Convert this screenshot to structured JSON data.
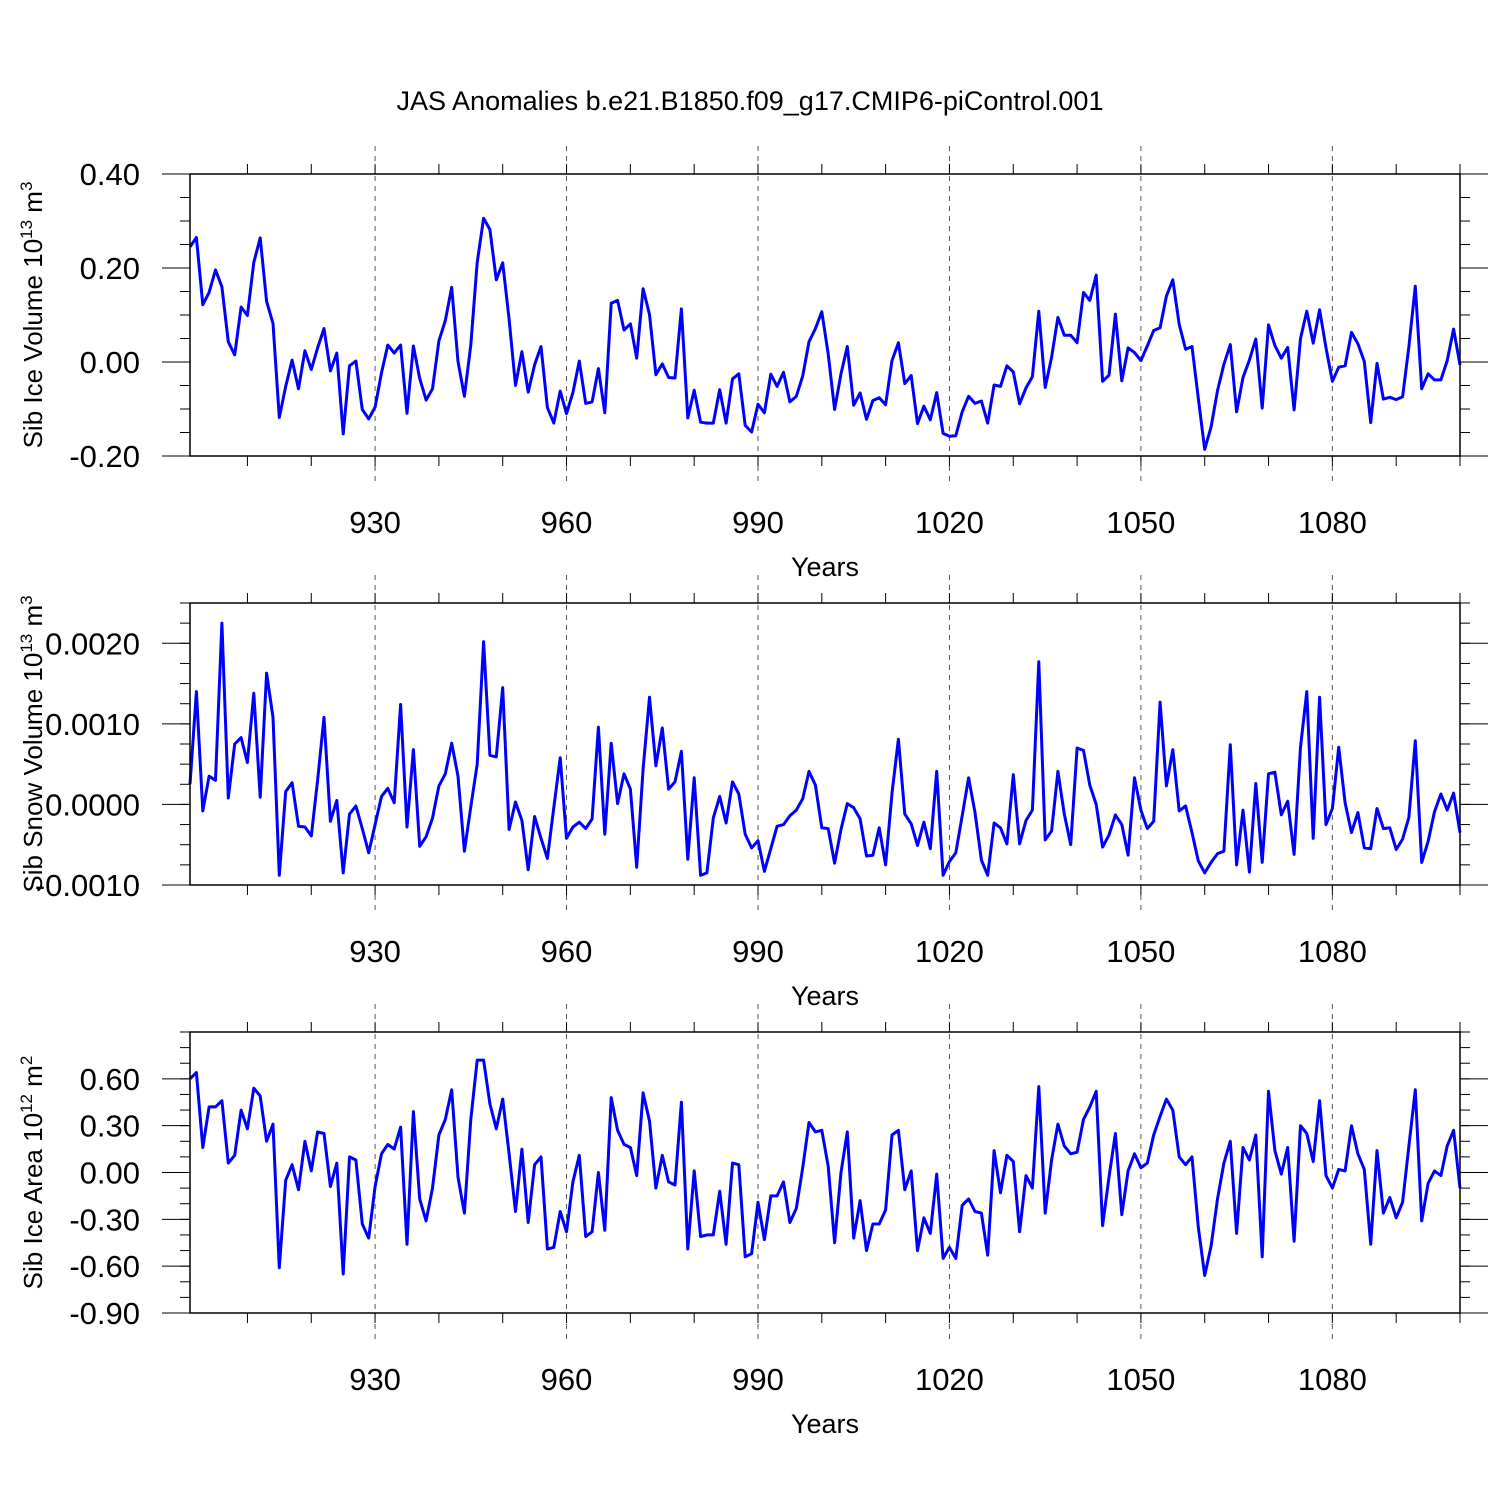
{
  "title": "JAS Anomalies b.e21.B1850.f09_g17.CMIP6-piControl.001",
  "line_color": "#0000ff",
  "chart_data": [
    {
      "type": "line",
      "title": "JAS Anomalies b.e21.B1850.f09_g17.CMIP6-piControl.001",
      "ylabel_main": "Sib Ice Volume 10",
      "ylabel_exp": "13",
      "ylabel_unit": " m",
      "ylabel_unit_exp": "3",
      "xlabel": "Years",
      "xlim": [
        901,
        1100
      ],
      "ylim": [
        -0.2,
        0.4
      ],
      "xticks": [
        930,
        960,
        990,
        1020,
        1050,
        1080
      ],
      "xtick_labels": [
        "930",
        "960",
        "990",
        "1020",
        "1050",
        "1080"
      ],
      "yticks": [
        -0.2,
        0.0,
        0.2,
        0.4
      ],
      "ytick_labels": [
        "-0.20",
        "0.00",
        "0.20",
        "0.40"
      ],
      "y_minor_step": 0.05,
      "x_start": 901,
      "values": [
        0.245,
        0.265,
        0.122,
        0.148,
        0.196,
        0.16,
        0.043,
        0.015,
        0.117,
        0.099,
        0.212,
        0.264,
        0.129,
        0.082,
        -0.118,
        -0.052,
        0.004,
        -0.057,
        0.024,
        -0.016,
        0.03,
        0.071,
        -0.019,
        0.019,
        -0.153,
        -0.008,
        0.002,
        -0.101,
        -0.121,
        -0.096,
        -0.023,
        0.036,
        0.019,
        0.036,
        -0.109,
        0.034,
        -0.035,
        -0.081,
        -0.057,
        0.045,
        0.088,
        0.159,
        0.001,
        -0.073,
        0.036,
        0.212,
        0.306,
        0.282,
        0.175,
        0.211,
        0.091,
        -0.05,
        0.022,
        -0.064,
        -0.006,
        0.033,
        -0.097,
        -0.13,
        -0.062,
        -0.11,
        -0.065,
        0.002,
        -0.088,
        -0.085,
        -0.014,
        -0.108,
        0.125,
        0.131,
        0.068,
        0.081,
        0.008,
        0.156,
        0.101,
        -0.027,
        -0.004,
        -0.033,
        -0.034,
        0.113,
        -0.119,
        -0.06,
        -0.128,
        -0.13,
        -0.13,
        -0.059,
        -0.13,
        -0.036,
        -0.025,
        -0.135,
        -0.149,
        -0.09,
        -0.108,
        -0.026,
        -0.052,
        -0.022,
        -0.085,
        -0.073,
        -0.03,
        0.043,
        0.071,
        0.107,
        0.017,
        -0.101,
        -0.025,
        0.033,
        -0.092,
        -0.066,
        -0.122,
        -0.082,
        -0.076,
        -0.091,
        0.003,
        0.041,
        -0.046,
        -0.029,
        -0.131,
        -0.094,
        -0.123,
        -0.065,
        -0.152,
        -0.158,
        -0.157,
        -0.106,
        -0.073,
        -0.088,
        -0.083,
        -0.13,
        -0.049,
        -0.052,
        -0.008,
        -0.021,
        -0.089,
        -0.055,
        -0.031,
        0.108,
        -0.054,
        0.01,
        0.095,
        0.057,
        0.057,
        0.041,
        0.148,
        0.131,
        0.185,
        -0.041,
        -0.028,
        0.102,
        -0.04,
        0.03,
        0.02,
        0.003,
        0.034,
        0.067,
        0.073,
        0.14,
        0.175,
        0.08,
        0.027,
        0.033,
        -0.077,
        -0.186,
        -0.138,
        -0.061,
        -0.005,
        0.037,
        -0.106,
        -0.033,
        0.004,
        0.049,
        -0.098,
        0.079,
        0.035,
        0.008,
        0.031,
        -0.102,
        0.05,
        0.108,
        0.04,
        0.111,
        0.03,
        -0.041,
        -0.011,
        -0.008,
        0.063,
        0.039,
        0.001,
        -0.129,
        -0.003,
        -0.079,
        -0.075,
        -0.08,
        -0.074,
        0.033,
        0.161,
        -0.057,
        -0.025,
        -0.038,
        -0.038,
        0.003,
        0.07,
        -0.006
      ]
    },
    {
      "type": "line",
      "ylabel_main": "Sib Snow Volume 10",
      "ylabel_exp": "13",
      "ylabel_unit": " m",
      "ylabel_unit_exp": "3",
      "xlabel": "Years",
      "xlim": [
        901,
        1100
      ],
      "ylim": [
        -0.001,
        0.0025
      ],
      "xticks": [
        930,
        960,
        990,
        1020,
        1050,
        1080
      ],
      "xtick_labels": [
        "930",
        "960",
        "990",
        "1020",
        "1050",
        "1080"
      ],
      "yticks": [
        -0.001,
        0.0,
        0.001,
        0.002
      ],
      "ytick_labels": [
        "-0.0010",
        "0.0000",
        "0.0010",
        "0.0020"
      ],
      "y_minor_step": 0.00025,
      "x_start": 901,
      "values": [
        0.00025,
        0.0014,
        -8e-05,
        0.00035,
        0.0003,
        0.00225,
        8e-05,
        0.00075,
        0.00083,
        0.00052,
        0.00138,
        9e-05,
        0.00163,
        0.00108,
        -0.00088,
        0.00016,
        0.00027,
        -0.00027,
        -0.00028,
        -0.00039,
        0.0003,
        0.00108,
        -0.00021,
        5e-05,
        -0.00085,
        -0.00012,
        -2e-05,
        -0.0003,
        -0.0006,
        -0.00025,
        0.0001,
        0.0002,
        2e-05,
        0.00124,
        -0.00028,
        0.00068,
        -0.00052,
        -0.0004,
        -0.00017,
        0.00023,
        0.00038,
        0.00076,
        0.00035,
        -0.00058,
        -3e-05,
        0.0005,
        0.00202,
        0.00061,
        0.00059,
        0.00145,
        -0.00031,
        3e-05,
        -0.0002,
        -0.00081,
        -0.00015,
        -0.00042,
        -0.00067,
        -4e-05,
        0.00058,
        -0.00042,
        -0.00028,
        -0.00022,
        -0.0003,
        -0.00018,
        0.00096,
        -0.00037,
        0.00076,
        1e-05,
        0.00038,
        0.00019,
        -0.00078,
        0.00044,
        0.00133,
        0.00048,
        0.00095,
        0.00019,
        0.00028,
        0.00066,
        -0.00068,
        0.00033,
        -0.00088,
        -0.00085,
        -0.00017,
        0.0001,
        -0.00023,
        0.00028,
        0.00013,
        -0.00037,
        -0.00054,
        -0.00045,
        -0.00083,
        -0.00055,
        -0.00027,
        -0.00025,
        -0.00014,
        -7e-05,
        7e-05,
        0.00041,
        0.00024,
        -0.00029,
        -0.0003,
        -0.00073,
        -0.00031,
        1e-05,
        -4e-05,
        -0.00018,
        -0.00064,
        -0.00063,
        -0.00029,
        -0.00075,
        0.00014,
        0.00081,
        -0.00012,
        -0.00024,
        -0.00051,
        -0.00022,
        -0.00055,
        0.00041,
        -0.00088,
        -0.00071,
        -0.0006,
        -0.00014,
        0.00033,
        -0.0001,
        -0.00069,
        -0.00088,
        -0.00023,
        -0.00029,
        -0.00049,
        0.00037,
        -0.00049,
        -0.0002,
        -7e-05,
        0.00177,
        -0.00044,
        -0.00033,
        0.00041,
        -0.00012,
        -0.0005,
        0.0007,
        0.00067,
        0.00024,
        0.0,
        -0.00053,
        -0.00038,
        -0.00013,
        -0.00025,
        -0.00063,
        0.00033,
        -7e-05,
        -0.0003,
        -0.00021,
        0.00127,
        0.00023,
        0.00068,
        -8e-05,
        -2e-05,
        -0.00035,
        -0.0007,
        -0.00085,
        -0.00072,
        -0.00061,
        -0.00058,
        0.00074,
        -0.00075,
        -7e-05,
        -0.00084,
        0.00026,
        -0.00072,
        0.00038,
        0.0004,
        -0.00013,
        4e-05,
        -0.00062,
        0.00071,
        0.0014,
        -0.00042,
        0.00133,
        -0.00025,
        -5e-05,
        0.00071,
        2e-05,
        -0.00035,
        -0.0001,
        -0.00054,
        -0.00055,
        -5e-05,
        -0.0003,
        -0.00029,
        -0.00056,
        -0.00043,
        -0.00016,
        0.00079,
        -0.00072,
        -0.00046,
        -9e-05,
        0.00013,
        -7e-05,
        0.00014,
        -0.00035
      ]
    },
    {
      "type": "line",
      "ylabel_main": "Sib Ice Area 10",
      "ylabel_exp": "12",
      "ylabel_unit": " m",
      "ylabel_unit_exp": "2",
      "xlabel": "Years",
      "xlim": [
        901,
        1100
      ],
      "ylim": [
        -0.9,
        0.9
      ],
      "xticks": [
        930,
        960,
        990,
        1020,
        1050,
        1080
      ],
      "xtick_labels": [
        "930",
        "960",
        "990",
        "1020",
        "1050",
        "1080"
      ],
      "yticks": [
        -0.9,
        -0.6,
        -0.3,
        0.0,
        0.3,
        0.6
      ],
      "ytick_labels": [
        "-0.90",
        "-0.60",
        "-0.30",
        "0.00",
        "0.30",
        "0.60"
      ],
      "y_minor_step": 0.1,
      "x_start": 901,
      "values": [
        0.6,
        0.64,
        0.16,
        0.42,
        0.42,
        0.46,
        0.06,
        0.11,
        0.4,
        0.28,
        0.54,
        0.49,
        0.2,
        0.31,
        -0.61,
        -0.05,
        0.05,
        -0.11,
        0.2,
        0.01,
        0.26,
        0.25,
        -0.09,
        0.06,
        -0.65,
        0.1,
        0.08,
        -0.33,
        -0.42,
        -0.09,
        0.12,
        0.18,
        0.15,
        0.29,
        -0.46,
        0.39,
        -0.17,
        -0.31,
        -0.1,
        0.24,
        0.34,
        0.53,
        -0.03,
        -0.26,
        0.34,
        0.72,
        0.72,
        0.44,
        0.28,
        0.47,
        0.12,
        -0.25,
        0.15,
        -0.32,
        0.05,
        0.1,
        -0.49,
        -0.48,
        -0.25,
        -0.38,
        -0.06,
        0.11,
        -0.41,
        -0.38,
        0.0,
        -0.37,
        0.48,
        0.27,
        0.18,
        0.16,
        -0.02,
        0.51,
        0.33,
        -0.1,
        0.11,
        -0.06,
        -0.08,
        0.45,
        -0.49,
        0.01,
        -0.41,
        -0.4,
        -0.4,
        -0.12,
        -0.46,
        0.06,
        0.05,
        -0.54,
        -0.52,
        -0.19,
        -0.43,
        -0.15,
        -0.15,
        -0.06,
        -0.32,
        -0.23,
        0.03,
        0.32,
        0.26,
        0.27,
        0.04,
        -0.45,
        0.0,
        0.26,
        -0.42,
        -0.18,
        -0.5,
        -0.33,
        -0.33,
        -0.24,
        0.24,
        0.27,
        -0.11,
        0.01,
        -0.5,
        -0.29,
        -0.39,
        -0.01,
        -0.55,
        -0.48,
        -0.55,
        -0.21,
        -0.17,
        -0.25,
        -0.26,
        -0.53,
        0.14,
        -0.13,
        0.11,
        0.07,
        -0.38,
        -0.02,
        -0.1,
        0.55,
        -0.26,
        0.08,
        0.31,
        0.17,
        0.12,
        0.13,
        0.34,
        0.42,
        0.52,
        -0.34,
        -0.03,
        0.25,
        -0.27,
        0.01,
        0.12,
        0.03,
        0.06,
        0.24,
        0.36,
        0.47,
        0.4,
        0.1,
        0.05,
        0.1,
        -0.35,
        -0.66,
        -0.47,
        -0.17,
        0.06,
        0.2,
        -0.39,
        0.16,
        0.08,
        0.24,
        -0.54,
        0.52,
        0.14,
        -0.01,
        0.16,
        -0.44,
        0.3,
        0.25,
        0.07,
        0.46,
        -0.02,
        -0.1,
        0.02,
        0.01,
        0.3,
        0.12,
        0.02,
        -0.46,
        0.14,
        -0.26,
        -0.16,
        -0.29,
        -0.19,
        0.17,
        0.53,
        -0.31,
        -0.07,
        0.01,
        -0.02,
        0.17,
        0.27,
        -0.1
      ]
    }
  ]
}
